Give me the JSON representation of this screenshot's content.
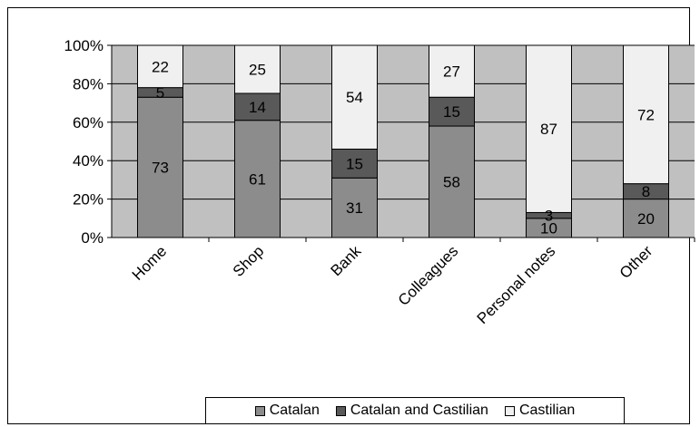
{
  "chart_data": {
    "type": "bar",
    "stacked": true,
    "percent": true,
    "categories": [
      "Home",
      "Shop",
      "Bank",
      "Colleagues",
      "Personal notes",
      "Other"
    ],
    "series": [
      {
        "name": "Catalan",
        "values": [
          73,
          61,
          31,
          58,
          10,
          20
        ],
        "color": "#8c8c8c"
      },
      {
        "name": "Catalan and Castilian",
        "values": [
          5,
          14,
          15,
          15,
          3,
          8
        ],
        "color": "#595959"
      },
      {
        "name": "Castilian",
        "values": [
          22,
          25,
          54,
          27,
          87,
          72
        ],
        "color": "#f0f0f0"
      }
    ],
    "y_ticks": [
      "0%",
      "20%",
      "40%",
      "60%",
      "80%",
      "100%"
    ],
    "ylim": [
      0,
      100
    ],
    "grid": true,
    "plot_background": "#c0c0c0",
    "legend_position": "bottom"
  }
}
